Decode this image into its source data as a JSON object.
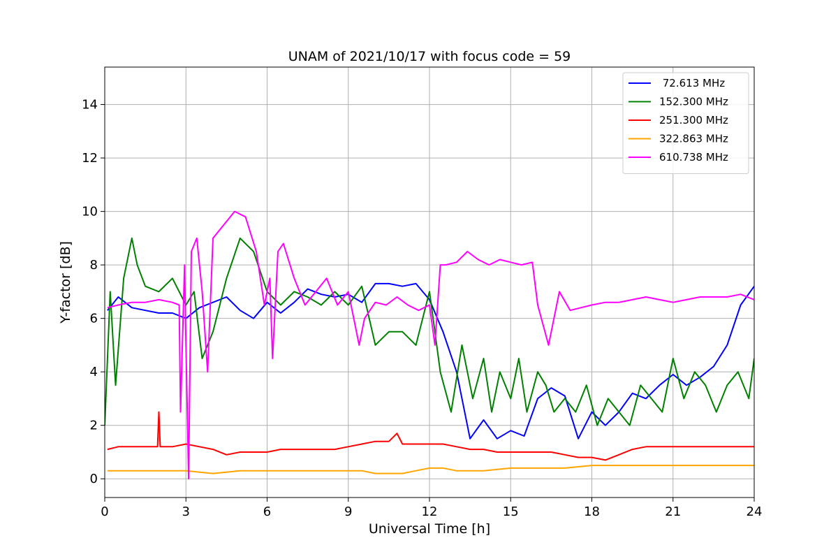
{
  "chart_data": {
    "type": "line",
    "title": "UNAM of 2021/10/17 with focus code = 59",
    "xlabel": "Universal Time [h]",
    "ylabel": "Y-factor [dB]",
    "xlim": [
      0,
      24
    ],
    "ylim": [
      -0.7,
      15.4
    ],
    "xticks": [
      0,
      3,
      6,
      9,
      12,
      15,
      18,
      21,
      24
    ],
    "yticks": [
      0,
      2,
      4,
      6,
      8,
      10,
      12,
      14
    ],
    "grid": true,
    "legend_position": "top-right",
    "series": [
      {
        "name": " 72.613 MHz",
        "color": "#0000ff",
        "x": [
          0.1,
          0.5,
          1,
          1.5,
          2,
          2.5,
          3,
          3.5,
          4,
          4.5,
          5,
          5.5,
          6,
          6.5,
          7,
          7.5,
          8,
          8.5,
          9,
          9.5,
          10,
          10.5,
          11,
          11.5,
          12,
          12.5,
          13,
          13.5,
          14,
          14.5,
          15,
          15.5,
          16,
          16.5,
          17,
          17.5,
          18,
          18.5,
          19,
          19.5,
          20,
          20.5,
          21,
          21.5,
          22,
          22.5,
          23,
          23.5,
          24
        ],
        "y": [
          6.3,
          6.8,
          6.4,
          6.3,
          6.2,
          6.2,
          6.0,
          6.4,
          6.6,
          6.8,
          6.3,
          6.0,
          6.6,
          6.2,
          6.6,
          7.1,
          6.9,
          6.8,
          6.9,
          6.6,
          7.3,
          7.3,
          7.2,
          7.3,
          6.7,
          5.5,
          4.0,
          1.5,
          2.2,
          1.5,
          1.8,
          1.6,
          3.0,
          3.4,
          3.1,
          1.5,
          2.5,
          2.0,
          2.5,
          3.2,
          3.0,
          3.5,
          3.9,
          3.5,
          3.8,
          4.2,
          5.0,
          6.5,
          7.2
        ]
      },
      {
        "name": "152.300 MHz",
        "color": "#008000",
        "x": [
          0,
          0.2,
          0.4,
          0.7,
          1,
          1.2,
          1.5,
          2,
          2.5,
          3,
          3.3,
          3.6,
          4,
          4.5,
          5,
          5.5,
          6,
          6.5,
          7,
          7.5,
          8,
          8.5,
          9,
          9.5,
          10,
          10.5,
          11,
          11.5,
          12,
          12.4,
          12.8,
          13.2,
          13.6,
          14,
          14.3,
          14.6,
          15,
          15.3,
          15.6,
          16,
          16.3,
          16.6,
          17,
          17.4,
          17.8,
          18.2,
          18.6,
          19,
          19.4,
          19.8,
          20.2,
          20.6,
          21,
          21.4,
          21.8,
          22.2,
          22.6,
          23,
          23.4,
          23.8,
          24
        ],
        "y": [
          2.0,
          7.0,
          3.5,
          7.5,
          9.0,
          8.0,
          7.2,
          7.0,
          7.5,
          6.5,
          7.0,
          4.5,
          5.5,
          7.5,
          9.0,
          8.5,
          7.0,
          6.5,
          7.0,
          6.8,
          6.5,
          7.0,
          6.5,
          7.2,
          5.0,
          5.5,
          5.5,
          5.0,
          7.0,
          4.0,
          2.5,
          5.0,
          3.0,
          4.5,
          2.5,
          4.0,
          3.0,
          4.5,
          2.5,
          4.0,
          3.5,
          2.5,
          3.0,
          2.5,
          3.5,
          2.0,
          3.0,
          2.5,
          2.0,
          3.5,
          3.0,
          2.5,
          4.5,
          3.0,
          4.0,
          3.5,
          2.5,
          3.5,
          4.0,
          3.0,
          4.5
        ]
      },
      {
        "name": "251.300 MHz",
        "color": "#ff0000",
        "x": [
          0.1,
          0.5,
          1,
          1.5,
          1.95,
          2.0,
          2.05,
          2.5,
          3,
          3.5,
          4,
          4.5,
          5,
          5.5,
          6,
          6.5,
          7,
          7.5,
          8,
          8.5,
          9,
          9.5,
          10,
          10.5,
          10.8,
          11,
          11.5,
          12,
          12.5,
          13,
          13.5,
          14,
          14.5,
          15,
          15.5,
          16,
          16.5,
          17,
          17.5,
          18,
          18.5,
          19,
          19.5,
          20,
          20.5,
          21,
          21.5,
          22,
          22.5,
          23,
          23.5,
          24
        ],
        "y": [
          1.1,
          1.2,
          1.2,
          1.2,
          1.2,
          2.5,
          1.2,
          1.2,
          1.3,
          1.2,
          1.1,
          0.9,
          1.0,
          1.0,
          1.0,
          1.1,
          1.1,
          1.1,
          1.1,
          1.1,
          1.2,
          1.3,
          1.4,
          1.4,
          1.7,
          1.3,
          1.3,
          1.3,
          1.3,
          1.2,
          1.1,
          1.1,
          1.0,
          1.0,
          1.0,
          1.0,
          1.0,
          0.9,
          0.8,
          0.8,
          0.7,
          0.9,
          1.1,
          1.2,
          1.2,
          1.2,
          1.2,
          1.2,
          1.2,
          1.2,
          1.2,
          1.2
        ]
      },
      {
        "name": "322.863 MHz",
        "color": "#ffa500",
        "x": [
          0.1,
          1,
          2,
          3,
          4,
          5,
          6,
          7,
          8,
          9,
          9.5,
          10,
          10.5,
          11,
          11.5,
          12,
          12.5,
          13,
          14,
          15,
          16,
          17,
          18,
          19,
          20,
          21,
          22,
          23,
          24
        ],
        "y": [
          0.3,
          0.3,
          0.3,
          0.3,
          0.2,
          0.3,
          0.3,
          0.3,
          0.3,
          0.3,
          0.3,
          0.2,
          0.2,
          0.2,
          0.3,
          0.4,
          0.4,
          0.3,
          0.3,
          0.4,
          0.4,
          0.4,
          0.5,
          0.5,
          0.5,
          0.5,
          0.5,
          0.5,
          0.5
        ]
      },
      {
        "name": "610.738 MHz",
        "color": "#ff00ff",
        "x": [
          0.1,
          0.5,
          1,
          1.5,
          2,
          2.5,
          2.75,
          2.8,
          2.95,
          3,
          3.1,
          3.2,
          3.4,
          3.6,
          3.8,
          4,
          4.4,
          4.8,
          5.2,
          5.6,
          5.9,
          6.1,
          6.2,
          6.4,
          6.6,
          7,
          7.4,
          7.8,
          8.2,
          8.6,
          9,
          9.4,
          9.6,
          10,
          10.4,
          10.8,
          11.2,
          11.6,
          12,
          12.2,
          12.4,
          12.6,
          13,
          13.4,
          13.8,
          14.2,
          14.6,
          15,
          15.4,
          15.8,
          16,
          16.4,
          16.8,
          17.2,
          17.6,
          18,
          18.5,
          19,
          19.5,
          20,
          20.5,
          21,
          21.5,
          22,
          22.5,
          23,
          23.5,
          24
        ],
        "y": [
          6.4,
          6.5,
          6.6,
          6.6,
          6.7,
          6.6,
          6.5,
          2.5,
          8.0,
          5.0,
          0.0,
          8.5,
          9.0,
          7.0,
          4.0,
          9.0,
          9.5,
          10.0,
          9.8,
          8.5,
          6.5,
          7.5,
          4.5,
          8.5,
          8.8,
          7.5,
          6.5,
          7.0,
          7.5,
          6.5,
          7.0,
          5.0,
          6.0,
          6.6,
          6.5,
          6.8,
          6.5,
          6.3,
          6.5,
          5.0,
          8.0,
          8.0,
          8.1,
          8.5,
          8.2,
          8.0,
          8.2,
          8.1,
          8.0,
          8.1,
          6.5,
          5.0,
          7.0,
          6.3,
          6.4,
          6.5,
          6.6,
          6.6,
          6.7,
          6.8,
          6.7,
          6.6,
          6.7,
          6.8,
          6.8,
          6.8,
          6.9,
          6.7
        ]
      }
    ]
  }
}
